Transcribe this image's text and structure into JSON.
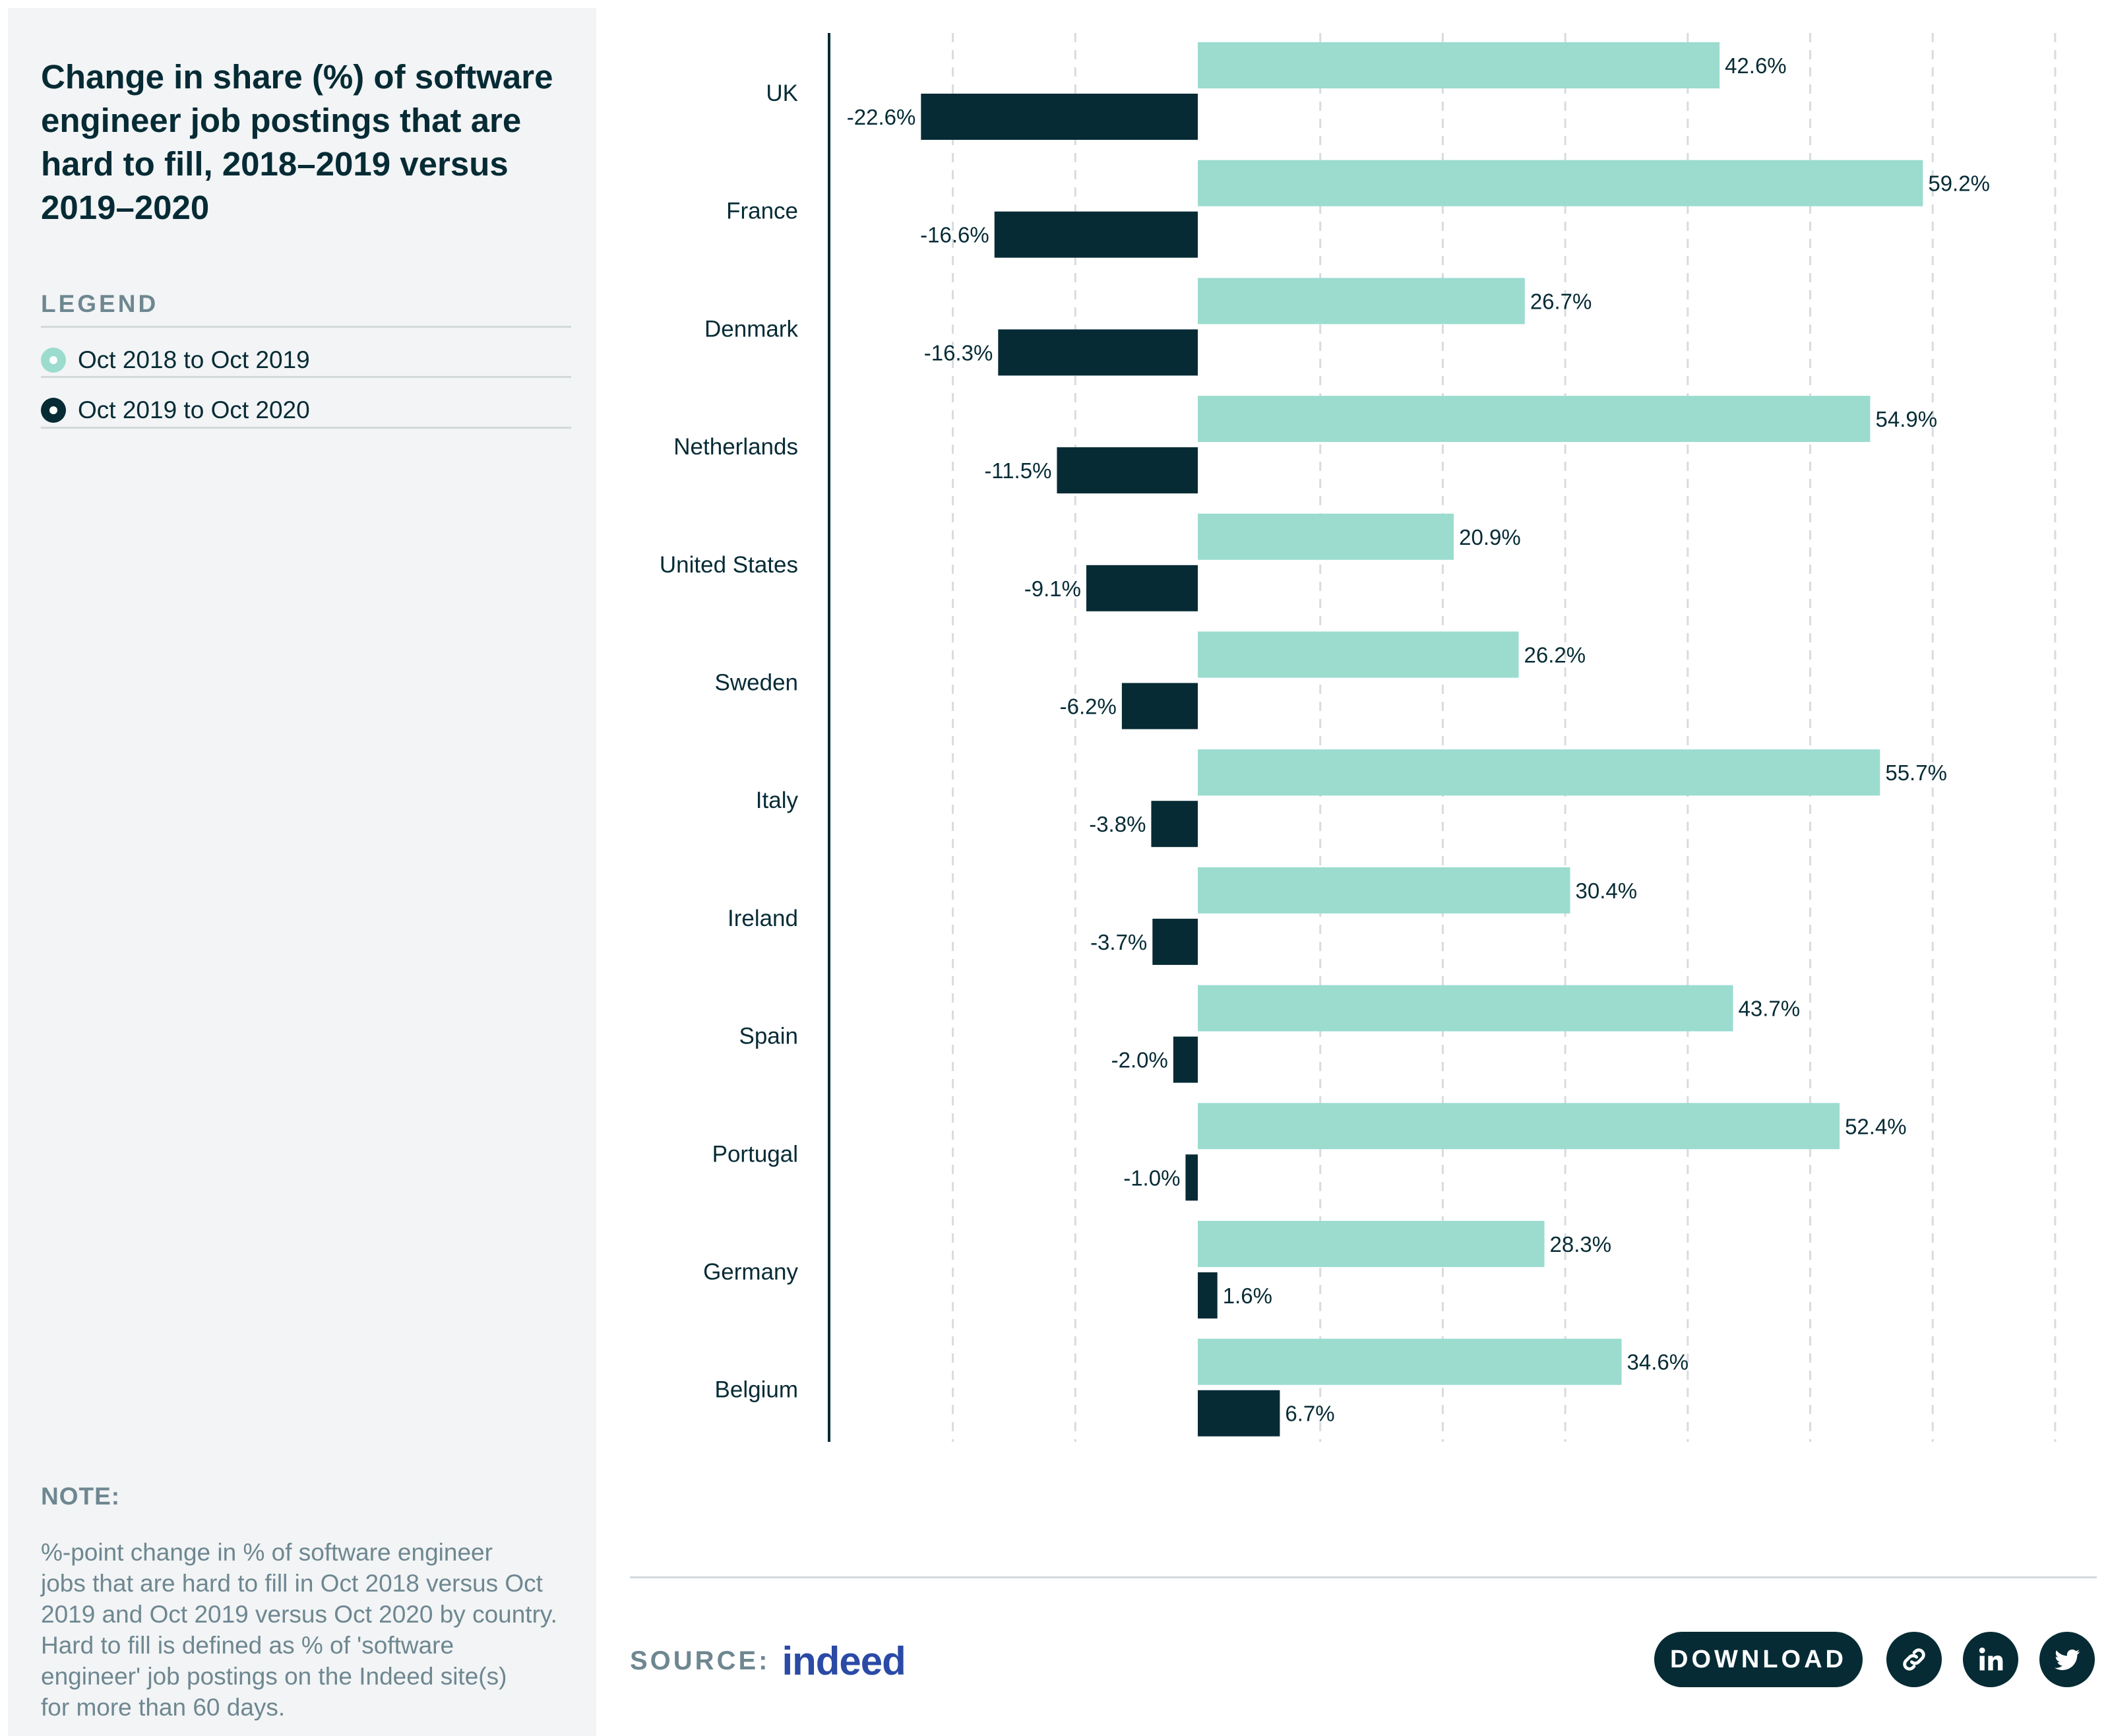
{
  "sidebar": {
    "title_lines": [
      "Change in share (%) of software",
      "engineer job postings that are",
      "hard to fill, 2018–2019 versus",
      "2019–2020"
    ],
    "legend_heading": "LEGEND",
    "note_heading": "NOTE:",
    "note_lines": [
      "%-point change in % of software engineer",
      "jobs that are hard to fill in Oct 2018 versus Oct",
      "2019 and Oct 2019 versus Oct 2020 by country.",
      "Hard to fill is defined as % of 'software",
      "engineer' job postings on the Indeed site(s)",
      "for more than 60 days."
    ]
  },
  "footer": {
    "source_label": "SOURCE:",
    "source_logo": "indeed",
    "download_label": "DOWNLOAD",
    "link_icon": "link-icon",
    "linkedin_icon": "linkedin-icon",
    "twitter_icon": "twitter-icon"
  },
  "colors": {
    "series_2019": "#9bdccf",
    "series_2020": "#062b35",
    "gridline": "#d7dcdf"
  },
  "chart_data": {
    "type": "bar",
    "orientation": "horizontal",
    "categories": [
      "UK",
      "France",
      "Denmark",
      "Netherlands",
      "United States",
      "Sweden",
      "Italy",
      "Ireland",
      "Spain",
      "Portugal",
      "Germany",
      "Belgium"
    ],
    "series": [
      {
        "name": "Oct 2018 to Oct 2019",
        "values": [
          42.6,
          59.2,
          26.7,
          54.9,
          20.9,
          26.2,
          55.7,
          30.4,
          43.7,
          52.4,
          28.3,
          34.6
        ],
        "labels": [
          "42.6%",
          "59.2%",
          "26.7%",
          "54.9%",
          "20.9%",
          "26.2%",
          "55.7%",
          "30.4%",
          "43.7%",
          "52.4%",
          "28.3%",
          "34.6%"
        ]
      },
      {
        "name": "Oct 2019 to Oct 2020",
        "values": [
          -22.6,
          -16.6,
          -16.3,
          -11.5,
          -9.1,
          -6.2,
          -3.8,
          -3.7,
          -2.0,
          -1.0,
          1.6,
          6.7
        ],
        "labels": [
          "-22.6%",
          "-16.6%",
          "-16.3%",
          "-11.5%",
          "-9.1%",
          "-6.2%",
          "-3.8%",
          "-3.7%",
          "-2.0%",
          "-1.0%",
          "1.6%",
          "6.7%"
        ]
      }
    ],
    "xlim": [
      -30,
      70
    ],
    "gridlines": [
      -20,
      -10,
      0,
      10,
      20,
      30,
      40,
      50,
      60,
      70
    ],
    "grid": true,
    "legend_position": "left panel"
  }
}
